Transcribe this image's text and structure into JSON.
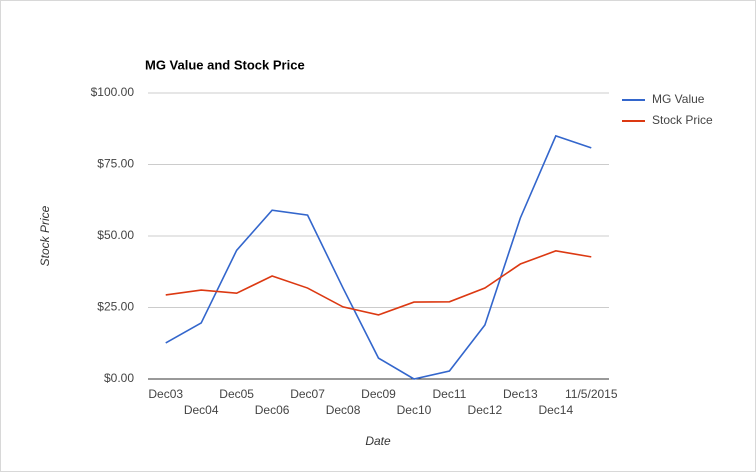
{
  "chart_data": {
    "type": "line",
    "title": "MG Value and Stock Price",
    "x_label": "Date",
    "y_label": "Stock Price",
    "categories": [
      "Dec03",
      "Dec04",
      "Dec05",
      "Dec06",
      "Dec07",
      "Dec08",
      "Dec09",
      "Dec10",
      "Dec11",
      "Dec12",
      "Dec13",
      "Dec14",
      "11/5/2015"
    ],
    "series": [
      {
        "name": "MG Value",
        "color": "#3366cc",
        "values": [
          12.6,
          19.6,
          45,
          59,
          57.3,
          31.8,
          7.3,
          0,
          2.8,
          18.9,
          56.3,
          85,
          80.8
        ]
      },
      {
        "name": "Stock Price",
        "color": "#dc3912",
        "values": [
          29.4,
          31.1,
          30,
          36,
          31.8,
          25.2,
          22.4,
          26.9,
          27,
          31.8,
          40.2,
          44.8,
          42.7
        ]
      }
    ],
    "ylim": [
      0,
      100
    ],
    "yticks": [
      {
        "value": 0,
        "label": "$0.00"
      },
      {
        "value": 25,
        "label": "$25.00"
      },
      {
        "value": 50,
        "label": "$50.00"
      },
      {
        "value": 75,
        "label": "$75.00"
      },
      {
        "value": 100,
        "label": "$100.00"
      }
    ],
    "grid": true,
    "legend": "right"
  }
}
